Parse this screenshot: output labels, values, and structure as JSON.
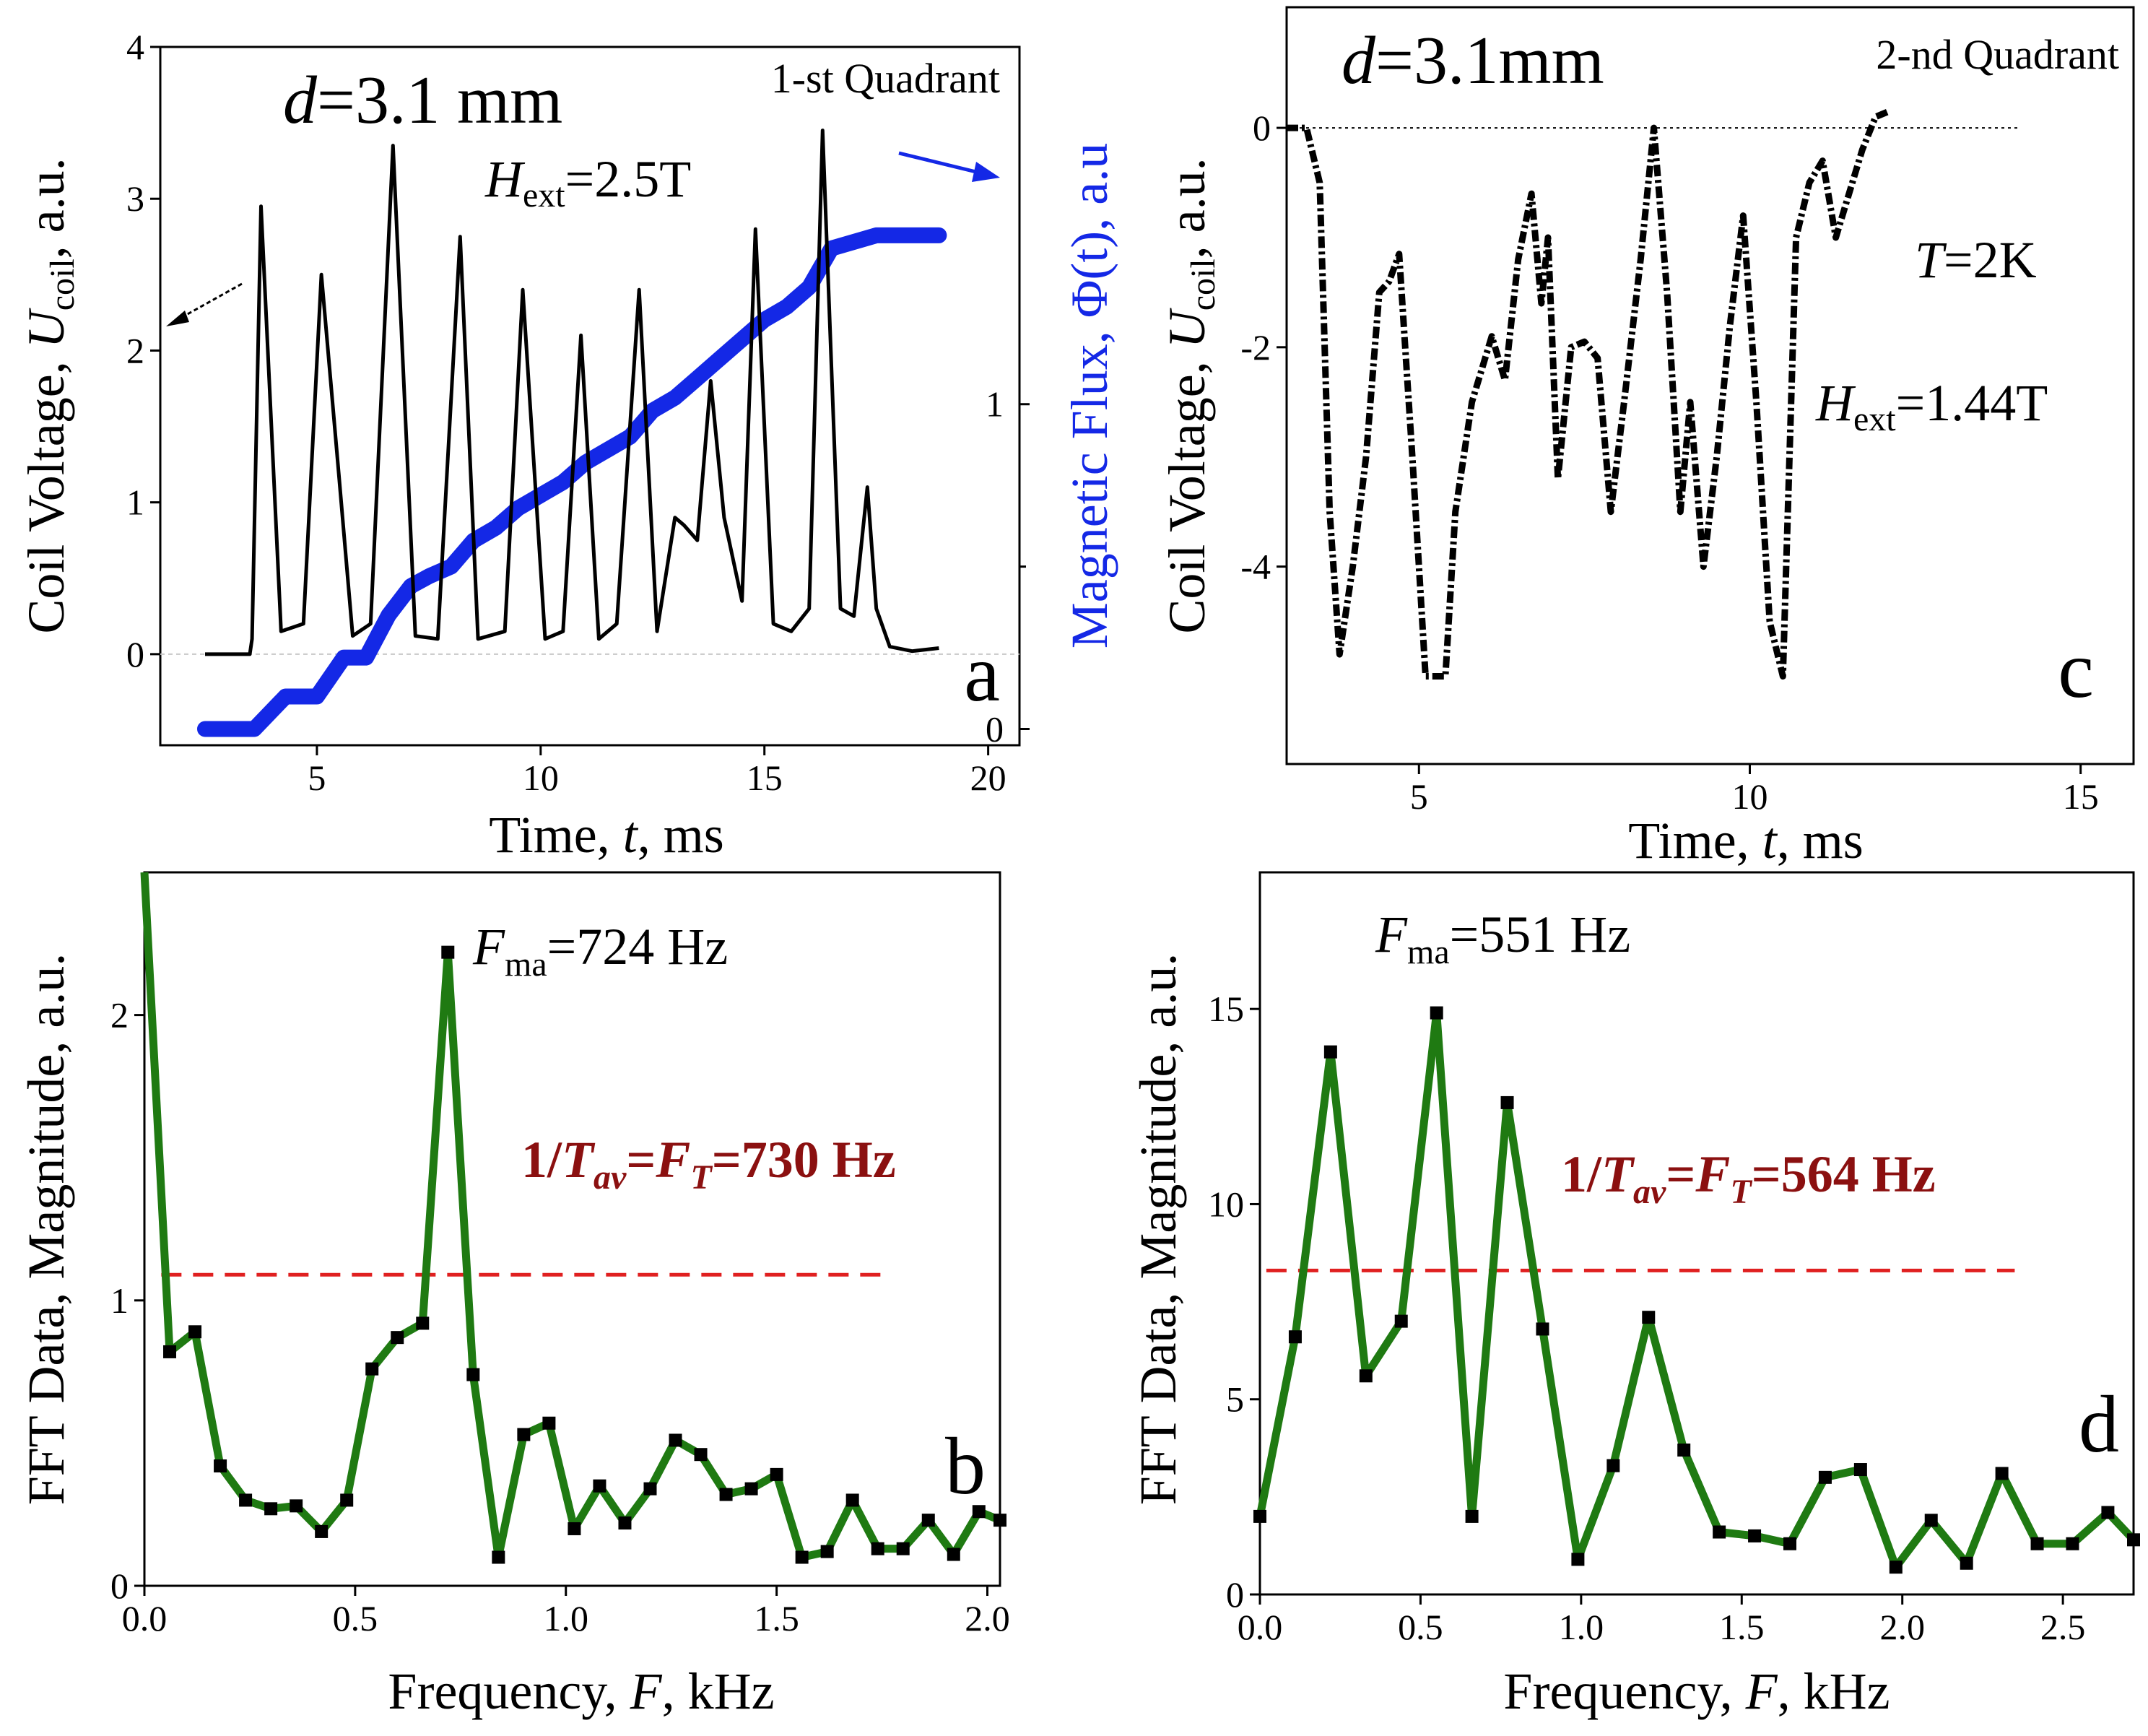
{
  "colors": {
    "black": "#000000",
    "flux_blue": "#1428e6",
    "fft_green": "#1f7a12",
    "ref_red": "#e02020",
    "red_text": "#8b1010",
    "zero_line": "#c8c8c8"
  },
  "chart_data": [
    {
      "id": "a",
      "type": "line",
      "panel_label": "a",
      "xlabel": "Time, t, ms",
      "xlabel_var": "t",
      "ylabel": "Coil Voltage, U_coil, a.u.",
      "ylabel_var": "U",
      "ylabel_sub": "coil",
      "y2label": "Magnetic Flux, Φ(t), a.u",
      "xlim": [
        1.5,
        20.7
      ],
      "ylim": [
        -0.6,
        4.0
      ],
      "xticks": [
        "5",
        "10",
        "15",
        "20"
      ],
      "yticks": [
        "0",
        "1",
        "2",
        "3",
        "4"
      ],
      "y2lim": [
        -0.05,
        2.1
      ],
      "y2ticks": [
        "0",
        "1"
      ],
      "title": "d=3.1 mm",
      "title_var": "d",
      "title_value": "=3.1 mm",
      "corner_text": "1-st Quadrant",
      "field_var": "H",
      "field_sub": "ext",
      "field_value": "=2.5T",
      "series": [
        {
          "name": "Coil Voltage",
          "axis": "left",
          "color": "#000000",
          "x": [
            2.5,
            3.5,
            3.55,
            3.75,
            4.2,
            4.7,
            5.1,
            5.5,
            5.8,
            6.2,
            6.7,
            7.2,
            7.7,
            8.2,
            8.6,
            9.2,
            9.6,
            10.1,
            10.5,
            10.9,
            11.3,
            11.7,
            12.2,
            12.6,
            13.0,
            13.2,
            13.5,
            13.8,
            14.1,
            14.5,
            14.8,
            15.2,
            15.6,
            16.0,
            16.3,
            16.7,
            17.0,
            17.3,
            17.5,
            17.8,
            18.3,
            18.9
          ],
          "y": [
            0,
            0,
            0.1,
            2.95,
            0.15,
            0.2,
            2.5,
            1.15,
            0.12,
            0.2,
            3.35,
            0.12,
            0.1,
            2.75,
            0.1,
            0.15,
            2.4,
            0.1,
            0.15,
            2.1,
            0.1,
            0.2,
            2.4,
            0.15,
            0.9,
            0.85,
            0.75,
            1.8,
            0.9,
            0.35,
            2.8,
            0.2,
            0.15,
            0.3,
            3.45,
            0.3,
            0.25,
            1.1,
            0.3,
            0.05,
            0.02,
            0.04
          ]
        },
        {
          "name": "Magnetic Flux",
          "axis": "right",
          "color": "#1428e6",
          "x": [
            2.5,
            3.6,
            4.3,
            5.0,
            5.6,
            6.1,
            6.6,
            7.1,
            7.5,
            8.0,
            8.5,
            9.0,
            9.5,
            10.0,
            10.5,
            11.0,
            11.5,
            12.0,
            12.5,
            13.0,
            13.5,
            14.0,
            14.5,
            15.0,
            15.5,
            16.0,
            16.5,
            17.0,
            17.5,
            18.0,
            18.9
          ],
          "y": [
            0,
            0,
            0.1,
            0.1,
            0.22,
            0.22,
            0.35,
            0.44,
            0.47,
            0.5,
            0.58,
            0.62,
            0.68,
            0.72,
            0.76,
            0.82,
            0.86,
            0.9,
            0.98,
            1.02,
            1.08,
            1.14,
            1.2,
            1.26,
            1.3,
            1.36,
            1.48,
            1.5,
            1.52,
            1.52,
            1.52
          ]
        }
      ]
    },
    {
      "id": "b",
      "type": "line",
      "panel_label": "b",
      "xlabel": "Frequency, F, kHz",
      "xlabel_var": "F",
      "ylabel": "FFT Data, Magnitude, a.u.",
      "xlim": [
        0,
        2.03
      ],
      "ylim": [
        0,
        2.5
      ],
      "xticks": [
        "0.0",
        "0.5",
        "1.0",
        "1.5",
        "2.0"
      ],
      "yticks": [
        "0",
        "1",
        "2"
      ],
      "peak_var": "F",
      "peak_sub": "ma",
      "peak_value": "=724 Hz",
      "period_prefix": "1/",
      "period_var1": "T",
      "period_sub1": "av",
      "period_eq": "=",
      "period_var2": "F",
      "period_sub2": "T",
      "period_value": "=730 Hz",
      "reference_line": {
        "y": 1.09,
        "x_range": [
          0.04,
          1.76
        ]
      },
      "series": [
        {
          "name": "FFT",
          "color": "#1f7a12",
          "x": [
            0.0,
            0.06,
            0.12,
            0.18,
            0.24,
            0.3,
            0.36,
            0.42,
            0.48,
            0.54,
            0.6,
            0.66,
            0.72,
            0.78,
            0.84,
            0.9,
            0.96,
            1.02,
            1.08,
            1.14,
            1.2,
            1.26,
            1.32,
            1.38,
            1.44,
            1.5,
            1.56,
            1.62,
            1.68,
            1.74,
            1.8,
            1.86,
            1.92,
            1.98,
            2.03
          ],
          "y": [
            2.6,
            0.82,
            0.89,
            0.42,
            0.3,
            0.27,
            0.28,
            0.19,
            0.3,
            0.76,
            0.87,
            0.92,
            2.22,
            0.74,
            0.1,
            0.53,
            0.57,
            0.2,
            0.35,
            0.22,
            0.34,
            0.51,
            0.46,
            0.32,
            0.34,
            0.39,
            0.1,
            0.12,
            0.3,
            0.13,
            0.13,
            0.23,
            0.11,
            0.26,
            0.23
          ]
        }
      ]
    },
    {
      "id": "c",
      "type": "line",
      "panel_label": "c",
      "xlabel": "Time, t, ms",
      "xlabel_var": "t",
      "ylabel": "Coil Voltage, U_coil, a.u.",
      "ylabel_var": "U",
      "ylabel_sub": "coil",
      "xlim": [
        3.0,
        15.8
      ],
      "ylim": [
        -5.8,
        1.1
      ],
      "xticks": [
        "5",
        "10",
        "15"
      ],
      "yticks": [
        "0",
        "-2",
        "-4"
      ],
      "title": "d=3.1mm",
      "title_var": "d",
      "title_value": "=3.1mm",
      "corner_text": "2-nd Quadrant",
      "temp_var": "T",
      "temp_value": "=2K",
      "field_var": "H",
      "field_sub": "ext",
      "field_value": "=1.44T",
      "series": [
        {
          "name": "Coil Voltage",
          "color": "#000000",
          "x": [
            3.0,
            3.3,
            3.5,
            3.65,
            3.8,
            4.0,
            4.2,
            4.4,
            4.55,
            4.7,
            4.9,
            5.1,
            5.4,
            5.55,
            5.8,
            6.1,
            6.3,
            6.5,
            6.7,
            6.85,
            6.95,
            7.1,
            7.3,
            7.5,
            7.7,
            7.9,
            8.1,
            8.35,
            8.55,
            8.75,
            8.95,
            9.1,
            9.3,
            9.5,
            9.7,
            9.9,
            10.1,
            10.3,
            10.5,
            10.7,
            10.9,
            11.1,
            11.3,
            11.5,
            11.7,
            11.9,
            12.1
          ],
          "y": [
            0.0,
            0.0,
            -0.5,
            -3.5,
            -4.8,
            -4.0,
            -3.0,
            -1.5,
            -1.4,
            -1.15,
            -3.0,
            -5.0,
            -5.0,
            -3.5,
            -2.5,
            -1.9,
            -2.3,
            -1.2,
            -0.6,
            -1.6,
            -1.0,
            -3.2,
            -2.0,
            -1.95,
            -2.1,
            -3.5,
            -2.5,
            -1.2,
            0.0,
            -1.5,
            -3.5,
            -2.5,
            -4.0,
            -3.0,
            -1.8,
            -0.8,
            -2.5,
            -4.5,
            -5.0,
            -1.0,
            -0.5,
            -0.3,
            -1.0,
            -0.6,
            -0.2,
            0.1,
            0.15
          ]
        }
      ]
    },
    {
      "id": "d",
      "type": "line",
      "panel_label": "d",
      "xlabel": "Frequency, F, kHz",
      "xlabel_var": "F",
      "ylabel": "FFT Data, Magnitude, a.u.",
      "xlim": [
        0,
        2.72
      ],
      "ylim": [
        0,
        18.5
      ],
      "xticks": [
        "0.0",
        "0.5",
        "1.0",
        "1.5",
        "2.0",
        "2.5"
      ],
      "yticks": [
        "0",
        "5",
        "10",
        "15"
      ],
      "peak_var": "F",
      "peak_sub": "ma",
      "peak_value": "=551 Hz",
      "period_prefix": "1/",
      "period_var1": "T",
      "period_sub1": "av",
      "period_eq": "=",
      "period_var2": "F",
      "period_sub2": "T",
      "period_value": "=564 Hz",
      "reference_line": {
        "y": 8.3,
        "x_range": [
          0.02,
          2.35
        ]
      },
      "series": [
        {
          "name": "FFT",
          "color": "#1f7a12",
          "x": [
            0.0,
            0.11,
            0.22,
            0.33,
            0.44,
            0.55,
            0.66,
            0.77,
            0.88,
            0.99,
            1.1,
            1.21,
            1.32,
            1.43,
            1.54,
            1.65,
            1.76,
            1.87,
            1.98,
            2.09,
            2.2,
            2.31,
            2.42,
            2.53,
            2.64,
            2.72
          ],
          "y": [
            2.0,
            6.6,
            13.9,
            5.6,
            7.0,
            14.9,
            2.0,
            12.6,
            6.8,
            0.9,
            3.3,
            7.1,
            3.7,
            1.6,
            1.5,
            1.3,
            3.0,
            3.2,
            0.7,
            1.9,
            0.8,
            3.1,
            1.3,
            1.3,
            2.1,
            1.4
          ]
        }
      ]
    }
  ]
}
